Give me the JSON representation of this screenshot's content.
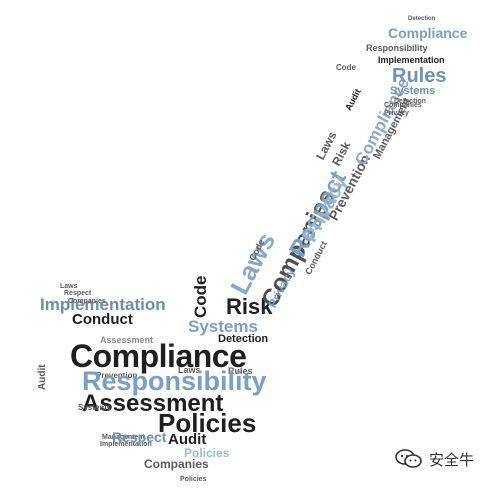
{
  "image": {
    "subject": "Word cloud arranged in the shape of a check mark",
    "palette": {
      "dark": "#1f1f1f",
      "gray": "#5c5c5c",
      "blue": "#7ba2c2",
      "light_blue": "#9dbad2",
      "background": "#ffffff"
    }
  },
  "words": {
    "compliance_main": "Compliance",
    "responsibility_main": "Responsibility",
    "assessment_main": "Assessment",
    "policies_main": "Policies",
    "implementation_left": "Implementation",
    "conduct_left": "Conduct",
    "respect_low": "Respect",
    "audit_low": "Audit",
    "companies_low": "Companies",
    "policies_low": "Policies",
    "systems_mid": "Systems",
    "risk_mid": "Risk",
    "code_mid": "Code",
    "detection_mid": "Detection",
    "rules_mid": "Rules",
    "laws_mid": "Laws",
    "respect_diag": "Respect",
    "companies_diag": "Companies",
    "laws_diag": "Laws",
    "privacy_diag": "Privacy",
    "prevention_diag": "Prevention",
    "risk_diag": "Risk",
    "laws_upper": "Laws",
    "compliance_upper": "Compliance",
    "management_upper": "Management",
    "rules_upper": "Rules",
    "implementation_upper": "Implementation",
    "responsibility_upper": "Responsibility",
    "compliance_top": "Compliance",
    "systems_upper": "Systems",
    "detection_upper": "Detection",
    "privacy_upper": "Privacy",
    "companies_upper": "Companies",
    "conduct_upper": "Conduct",
    "audit_upper": "Audit",
    "code_upper": "Code",
    "laws_small": "Laws",
    "companies_small": "Companies",
    "respect_small": "Respect",
    "prevention_small": "Prevention",
    "assessment_small": "Assessment",
    "management_small": "Management",
    "implementation_small": "Implementation",
    "audit_small": "Audit",
    "systems_small": "Systems",
    "policies_small": "Policies",
    "code_small": "Code",
    "privacy_small": "Privacy"
  },
  "watermark": {
    "text": "安全牛",
    "icon": "wechat-icon"
  }
}
